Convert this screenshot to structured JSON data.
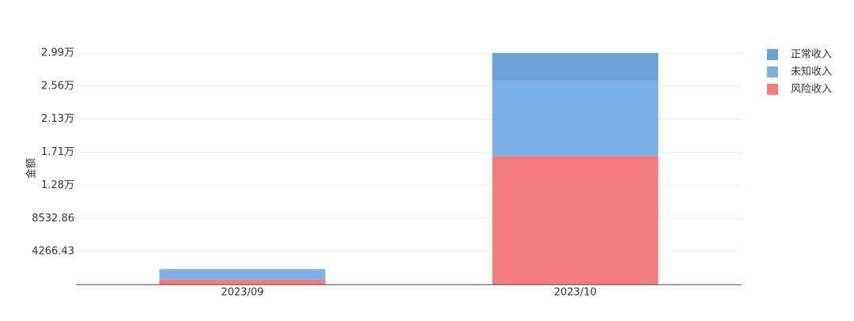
{
  "chart_data": {
    "type": "stacked_bar",
    "y_label": "金额",
    "categories": [
      "2023/09",
      "2023/10"
    ],
    "series": [
      {
        "name": "风险收入",
        "color": "#f27d7d",
        "values": [
          700,
          16560
        ]
      },
      {
        "name": "未知收入",
        "color": "#7db1ea",
        "values": [
          1200,
          9750
        ]
      },
      {
        "name": "正常收入",
        "color": "#6ea2d6",
        "values": [
          100,
          3555
        ]
      }
    ],
    "legend_order": [
      2,
      1,
      0
    ],
    "ylim": [
      0,
      29865.01
    ],
    "yticks": [
      4266.43,
      8532.86,
      {
        "value": 12799.29,
        "label": "1.28万"
      },
      {
        "value": 17065.72,
        "label": "1.71万"
      },
      {
        "value": 21332.15,
        "label": "2.13万"
      },
      {
        "value": 25598.58,
        "label": "2.56万"
      },
      {
        "value": 29865.01,
        "label": "2.99万"
      }
    ],
    "grid": true,
    "legend": "top-right"
  }
}
